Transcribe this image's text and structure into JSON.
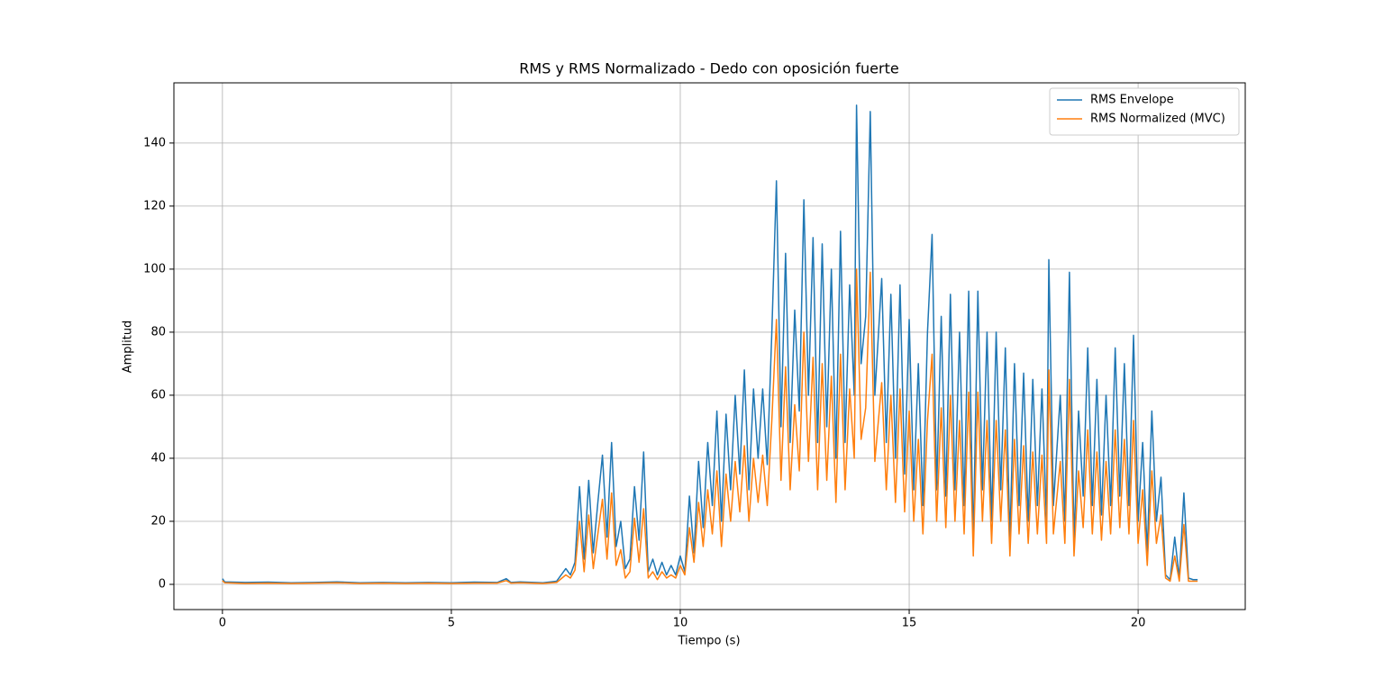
{
  "chart_data": {
    "type": "line",
    "title": "RMS y RMS Normalizado - Dedo con oposición fuerte",
    "xlabel": "Tiempo (s)",
    "ylabel": "Amplitud",
    "xlim": [
      -1.06,
      22.34
    ],
    "ylim": [
      -8,
      159.1
    ],
    "xticks": [
      0,
      5,
      10,
      15,
      20
    ],
    "yticks": [
      0,
      20,
      40,
      60,
      80,
      100,
      120,
      140
    ],
    "grid": true,
    "legend": "upper right",
    "x": [
      0,
      0.05,
      0.5,
      1,
      1.5,
      2,
      2.5,
      3,
      3.5,
      4,
      4.5,
      5,
      5.5,
      6,
      6.2,
      6.3,
      6.5,
      7,
      7.3,
      7.5,
      7.6,
      7.7,
      7.8,
      7.9,
      8.0,
      8.1,
      8.2,
      8.3,
      8.4,
      8.5,
      8.6,
      8.7,
      8.8,
      8.9,
      9.0,
      9.1,
      9.2,
      9.3,
      9.4,
      9.5,
      9.6,
      9.7,
      9.8,
      9.9,
      10.0,
      10.1,
      10.2,
      10.3,
      10.4,
      10.5,
      10.6,
      10.7,
      10.8,
      10.9,
      11.0,
      11.1,
      11.2,
      11.3,
      11.4,
      11.5,
      11.6,
      11.7,
      11.8,
      11.9,
      12.0,
      12.1,
      12.2,
      12.3,
      12.4,
      12.5,
      12.6,
      12.7,
      12.8,
      12.9,
      13.0,
      13.1,
      13.2,
      13.3,
      13.4,
      13.5,
      13.6,
      13.7,
      13.8,
      13.85,
      13.95,
      14.05,
      14.15,
      14.25,
      14.4,
      14.5,
      14.6,
      14.7,
      14.8,
      14.9,
      15.0,
      15.1,
      15.2,
      15.3,
      15.4,
      15.5,
      15.6,
      15.7,
      15.8,
      15.9,
      16.0,
      16.1,
      16.2,
      16.3,
      16.4,
      16.5,
      16.6,
      16.7,
      16.8,
      16.9,
      17.0,
      17.1,
      17.2,
      17.3,
      17.4,
      17.5,
      17.6,
      17.7,
      17.8,
      17.9,
      18.0,
      18.05,
      18.15,
      18.3,
      18.4,
      18.5,
      18.6,
      18.7,
      18.8,
      18.9,
      19.0,
      19.1,
      19.2,
      19.3,
      19.4,
      19.5,
      19.6,
      19.7,
      19.8,
      19.9,
      20.0,
      20.1,
      20.2,
      20.3,
      20.4,
      20.5,
      20.6,
      20.7,
      20.8,
      20.9,
      21.0,
      21.1,
      21.2,
      21.3
    ],
    "series": [
      {
        "name": "RMS Envelope",
        "color": "#1f77b4",
        "values": [
          1.8,
          0.8,
          0.6,
          0.7,
          0.5,
          0.6,
          0.8,
          0.5,
          0.6,
          0.5,
          0.6,
          0.5,
          0.7,
          0.6,
          1.8,
          0.6,
          0.8,
          0.5,
          1.0,
          5,
          3,
          7,
          31,
          8,
          33,
          10,
          26,
          41,
          15,
          45,
          12,
          20,
          5,
          8,
          31,
          14,
          42,
          4,
          8,
          3,
          7,
          3,
          6,
          3,
          9,
          4,
          28,
          10,
          39,
          18,
          45,
          25,
          55,
          20,
          54,
          30,
          60,
          35,
          68,
          30,
          62,
          40,
          62,
          38,
          80,
          128,
          50,
          105,
          45,
          87,
          55,
          122,
          60,
          110,
          45,
          108,
          50,
          100,
          40,
          112,
          45,
          95,
          60,
          152,
          70,
          85,
          150,
          60,
          97,
          45,
          92,
          40,
          95,
          35,
          84,
          30,
          70,
          25,
          80,
          111,
          30,
          85,
          28,
          92,
          30,
          80,
          25,
          93,
          13,
          93,
          30,
          80,
          20,
          80,
          30,
          75,
          14,
          70,
          25,
          67,
          20,
          65,
          25,
          62,
          20,
          103,
          25,
          60,
          20,
          99,
          14,
          55,
          28,
          75,
          25,
          65,
          22,
          60,
          25,
          75,
          28,
          70,
          25,
          79,
          20,
          45,
          10,
          55,
          20,
          34,
          3,
          1.5,
          15,
          2,
          29,
          2,
          1.5,
          1.5
        ]
      },
      {
        "name": "RMS Normalized (MVC)",
        "color": "#ff7f0e",
        "values": [
          1.2,
          0.5,
          0.3,
          0.4,
          0.3,
          0.4,
          0.5,
          0.3,
          0.4,
          0.3,
          0.4,
          0.3,
          0.4,
          0.4,
          1.2,
          0.4,
          0.5,
          0.3,
          0.6,
          3,
          2,
          4.5,
          20,
          4,
          22,
          5,
          16,
          27,
          8,
          29,
          6,
          11,
          2,
          4,
          21,
          7,
          24,
          2,
          4,
          1.5,
          4,
          2,
          3,
          2,
          6,
          3,
          18,
          7,
          26,
          12,
          30,
          16,
          36,
          12,
          35,
          20,
          39,
          23,
          44,
          20,
          40,
          26,
          41,
          25,
          52,
          84,
          33,
          69,
          30,
          57,
          36,
          80,
          39,
          72,
          30,
          70,
          33,
          66,
          26,
          73,
          30,
          62,
          40,
          100,
          46,
          56,
          99,
          39,
          64,
          30,
          60,
          26,
          62,
          23,
          55,
          20,
          46,
          16,
          52,
          73,
          20,
          56,
          18,
          60,
          20,
          52,
          16,
          61,
          9,
          61,
          20,
          52,
          13,
          52,
          20,
          49,
          9,
          46,
          16,
          44,
          13,
          42,
          16,
          41,
          13,
          68,
          16,
          39,
          13,
          65,
          9,
          36,
          18,
          49,
          16,
          42,
          14,
          39,
          16,
          49,
          18,
          46,
          16,
          52,
          13,
          30,
          6,
          36,
          13,
          22,
          2,
          1,
          9,
          1,
          19,
          1,
          1,
          1
        ]
      }
    ]
  }
}
